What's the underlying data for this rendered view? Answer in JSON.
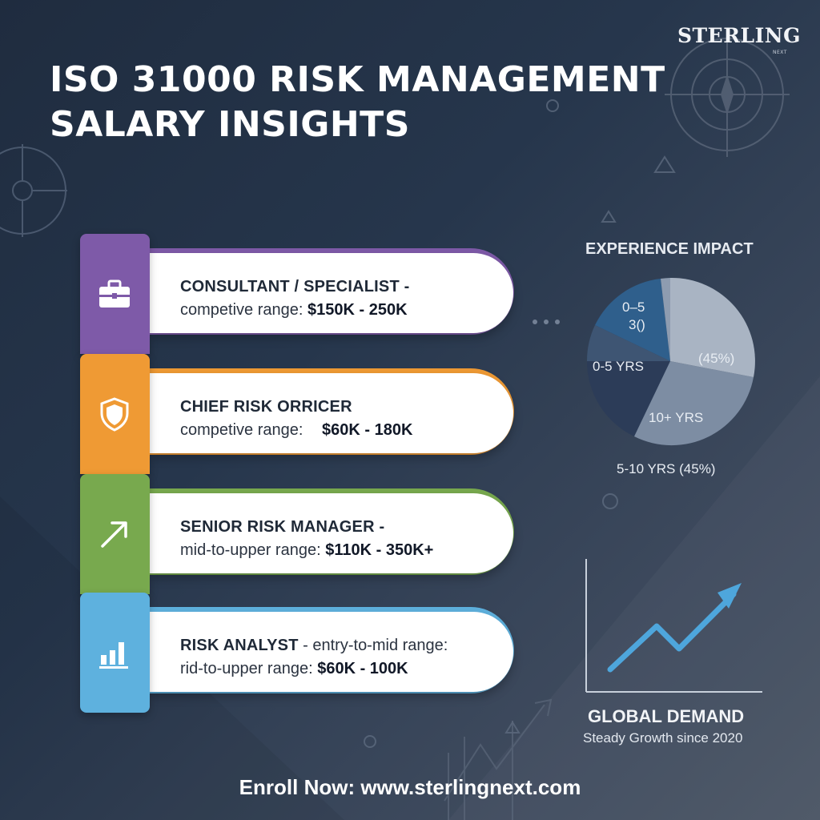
{
  "brand": {
    "name": "STERLING",
    "sub": "NEXT"
  },
  "title": {
    "line1": "ISO 31000 RISK MANAGEMENT",
    "line2": "SALARY INSIGHTS"
  },
  "cards": [
    {
      "role": "CONSULTANT / SPECIALIST -",
      "range_text": "competive range:",
      "range_value": "$150K - 250K",
      "color": "#7e5aa8",
      "icon": "briefcase-icon"
    },
    {
      "role": "CHIEF RISK ORRICER",
      "range_text": "competive range:",
      "range_value": "$60K - 180K",
      "color": "#ef9a34",
      "icon": "shield-icon"
    },
    {
      "role": "SENIOR RISK MANAGER -",
      "range_text": "mid-to-upper range:",
      "range_value": "$110K - 350K+",
      "color": "#78a94e",
      "icon": "trend-arrow-icon"
    },
    {
      "role": "RISK ANALYST",
      "role_suffix": " - entry-to-mid range:",
      "range_text": "rid-to-upper range:",
      "range_value": "$60K - 100K",
      "color": "#5eb1de",
      "icon": "bar-chart-icon"
    }
  ],
  "experience": {
    "title": "EXPERIENCE IMPACT",
    "labels": {
      "top_a": "0–5",
      "top_b": "3()",
      "left": "0-5 YRS",
      "right": "(45%)",
      "bottom": "10+ YRS",
      "below": "5-10 YRS (45%)"
    },
    "colors": [
      "#2f5f8c",
      "#2c3c58",
      "#7d8da3",
      "#a9b4c3",
      "#8e9cb0"
    ]
  },
  "demand": {
    "title": "GLOBAL DEMAND",
    "subtitle": "Steady Growth since 2020",
    "line_color": "#4ea6dc"
  },
  "footer": {
    "text": "Enroll Now: www.sterlingnext.com"
  }
}
